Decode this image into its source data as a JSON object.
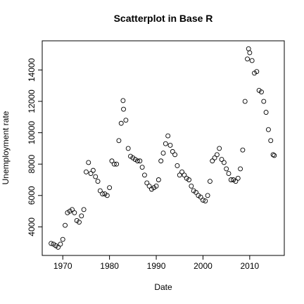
{
  "chart_data": {
    "type": "scatter",
    "title": "Scatterplot in Base R",
    "x_label": "Date",
    "y_label": "Unemployment rate",
    "color": "#000000",
    "xlim": [
      1965.6,
      2017.4
    ],
    "ylim": [
      2178,
      15859
    ],
    "xticks": [
      1970,
      1980,
      1990,
      2000,
      2010
    ],
    "yticks": [
      4000,
      6000,
      8000,
      10000,
      12000,
      14000
    ],
    "x": [
      1967.5,
      1968,
      1968.5,
      1969,
      1969.5,
      1970,
      1970.5,
      1971,
      1971.5,
      1972,
      1972.5,
      1973,
      1973.5,
      1974,
      1974.5,
      1975,
      1975.5,
      1976,
      1976.5,
      1977,
      1977.5,
      1978,
      1978.5,
      1979,
      1979.5,
      1980,
      1980.5,
      1981,
      1981.5,
      1982,
      1982.5,
      1982.9,
      1983,
      1983.5,
      1984,
      1984.5,
      1985,
      1985.5,
      1986,
      1986.5,
      1987,
      1987.5,
      1988,
      1988.5,
      1989,
      1989.5,
      1990,
      1990.5,
      1991,
      1991.5,
      1992,
      1992.5,
      1993,
      1993.5,
      1994,
      1994.5,
      1995,
      1995.5,
      1996,
      1996.5,
      1997,
      1997.5,
      1998,
      1998.5,
      1999,
      1999.5,
      2000,
      2000.5,
      2001,
      2001.5,
      2002,
      2002.5,
      2003,
      2003.5,
      2004,
      2004.5,
      2005,
      2005.5,
      2006,
      2006.5,
      2007,
      2007.5,
      2008,
      2008.5,
      2009,
      2009.5,
      2009.75,
      2010,
      2010.5,
      2011,
      2011.5,
      2012,
      2012.5,
      2013,
      2013.5,
      2014,
      2014.5,
      2015,
      2015.25
    ],
    "values": [
      2944,
      2900,
      2800,
      2700,
      2900,
      3200,
      4100,
      4900,
      5000,
      5100,
      4900,
      4400,
      4300,
      4700,
      5100,
      7500,
      8100,
      7400,
      7600,
      7200,
      6900,
      6300,
      6100,
      6100,
      6000,
      6500,
      8200,
      8000,
      8000,
      9500,
      10600,
      12051,
      11500,
      10800,
      9000,
      8500,
      8400,
      8300,
      8200,
      8200,
      7800,
      7300,
      6800,
      6600,
      6400,
      6500,
      6600,
      7000,
      8200,
      8700,
      9300,
      9800,
      9200,
      8800,
      8600,
      7900,
      7300,
      7500,
      7300,
      7100,
      7000,
      6600,
      6300,
      6200,
      6000,
      5900,
      5700,
      5650,
      6000,
      6900,
      8200,
      8400,
      8600,
      9000,
      8300,
      8100,
      7700,
      7400,
      7000,
      7000,
      6900,
      7100,
      7700,
      8900,
      12000,
      14700,
      15352,
      15100,
      14600,
      13800,
      13900,
      12700,
      12600,
      12000,
      11300,
      10200,
      9500,
      8600,
      8550
    ]
  }
}
